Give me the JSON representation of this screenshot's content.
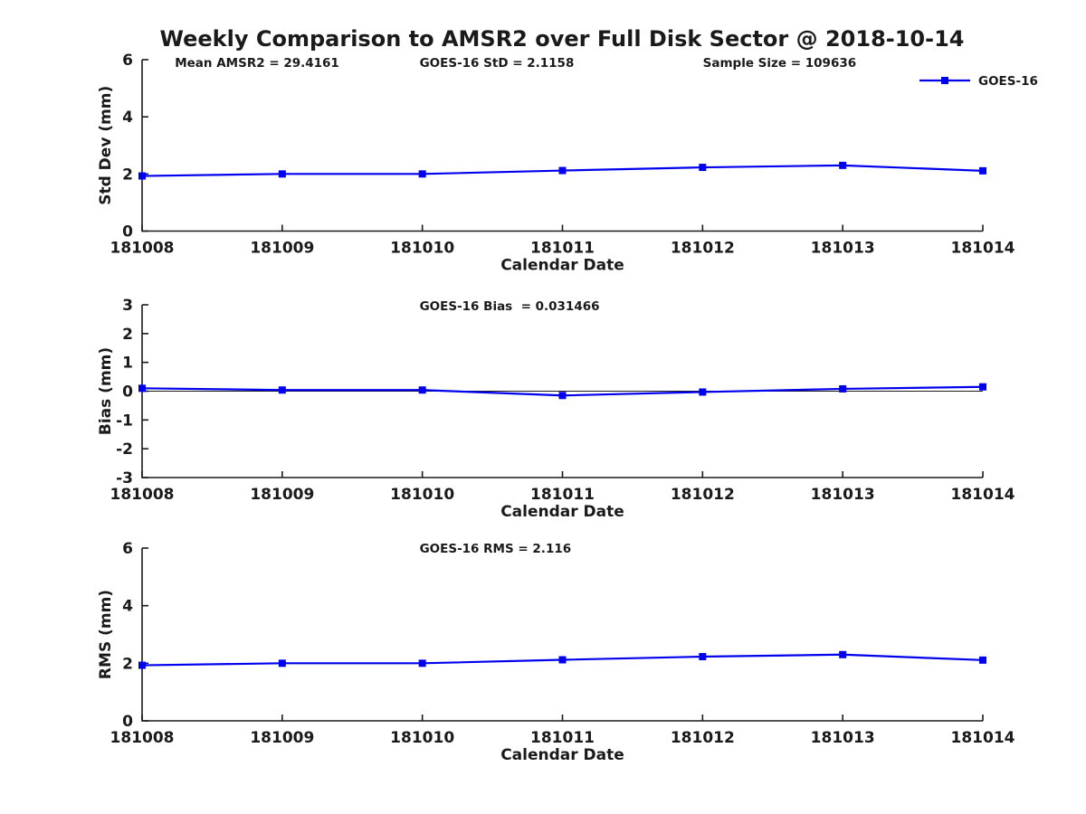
{
  "title": "Weekly Comparison to AMSR2 over Full Disk Sector @ 2018-10-14",
  "accent_color": "#0000ee",
  "text_color": "#1a1a1a",
  "legend": {
    "label": "GOES-16",
    "position": "top-right"
  },
  "chart_data": [
    {
      "type": "line",
      "name": "std-dev",
      "ylabel": "Std Dev (mm)",
      "xlabel": "Calendar Date",
      "ylim": [
        0,
        6
      ],
      "yticks": [
        0,
        2,
        4,
        6
      ],
      "categories": [
        "181008",
        "181009",
        "181010",
        "181011",
        "181012",
        "181013",
        "181014"
      ],
      "series": [
        {
          "name": "GOES-16",
          "values": [
            1.93,
            2.0,
            2.0,
            2.12,
            2.23,
            2.3,
            2.11
          ]
        }
      ],
      "annotations": [
        "Mean AMSR2 = 29.4161",
        "GOES-16 StD = 2.1158",
        "Sample Size = 109636"
      ],
      "grid": false,
      "legend_position": "top-right",
      "zero_line": false
    },
    {
      "type": "line",
      "name": "bias",
      "ylabel": "Bias (mm)",
      "xlabel": "Calendar Date",
      "ylim": [
        -3,
        3
      ],
      "yticks": [
        -3,
        -2,
        -1,
        0,
        1,
        2,
        3
      ],
      "categories": [
        "181008",
        "181009",
        "181010",
        "181011",
        "181012",
        "181013",
        "181014"
      ],
      "series": [
        {
          "name": "GOES-16",
          "values": [
            0.1,
            0.04,
            0.04,
            -0.15,
            -0.03,
            0.08,
            0.15
          ]
        }
      ],
      "annotations": [
        "GOES-16 Bias  = 0.031466"
      ],
      "grid": false,
      "zero_line": true
    },
    {
      "type": "line",
      "name": "rms",
      "ylabel": "RMS (mm)",
      "xlabel": "Calendar Date",
      "ylim": [
        0,
        6
      ],
      "yticks": [
        0,
        2,
        4,
        6
      ],
      "categories": [
        "181008",
        "181009",
        "181010",
        "181011",
        "181012",
        "181013",
        "181014"
      ],
      "series": [
        {
          "name": "GOES-16",
          "values": [
            1.93,
            2.0,
            2.0,
            2.12,
            2.23,
            2.3,
            2.11
          ]
        }
      ],
      "annotations": [
        "GOES-16 RMS = 2.116"
      ],
      "grid": false,
      "zero_line": false
    }
  ]
}
